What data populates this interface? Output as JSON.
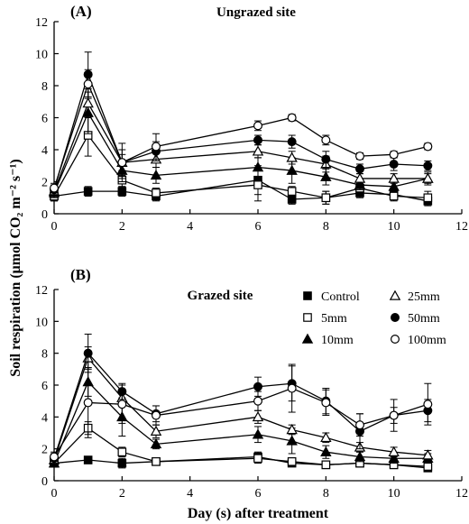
{
  "figure": {
    "ylabel": "Soil respiration (μmol CO₂ m⁻² s⁻¹)",
    "xlabel": "Day (s) after treatment"
  },
  "legend": [
    "Control",
    "5mm",
    "10mm",
    "25mm",
    "50mm",
    "100mm"
  ],
  "chart_data": [
    {
      "type": "line",
      "panel": "(A)",
      "title": "Ungrazed site",
      "xlim": [
        0,
        12
      ],
      "ylim": [
        0,
        12
      ],
      "xticks": [
        "0",
        "2",
        "4",
        "6",
        "8",
        "10",
        "12"
      ],
      "yticks": [
        "0",
        "2",
        "4",
        "6",
        "8",
        "10",
        "12"
      ],
      "x": [
        0,
        1,
        2,
        3,
        6,
        7,
        8,
        9,
        10,
        11
      ],
      "series": [
        {
          "name": "Control",
          "marker": "square-filled",
          "values": [
            1.1,
            1.4,
            1.4,
            1.1,
            2.1,
            0.9,
            1.0,
            1.3,
            1.2,
            0.8
          ],
          "errors": [
            0.3,
            0.3,
            0.3,
            0.3,
            0.9,
            0.3,
            0.4,
            0.3,
            0.3,
            0.3
          ]
        },
        {
          "name": "5mm",
          "marker": "square-open",
          "values": [
            1.1,
            4.9,
            2.1,
            1.3,
            1.8,
            1.4,
            1.0,
            1.6,
            1.1,
            1.0
          ],
          "errors": [
            0.3,
            1.3,
            0.4,
            0.3,
            1.0,
            0.3,
            0.4,
            0.3,
            0.3,
            0.4
          ]
        },
        {
          "name": "10mm",
          "marker": "triangle-filled",
          "values": [
            1.3,
            6.3,
            2.7,
            2.4,
            2.9,
            2.7,
            2.3,
            1.8,
            1.7,
            2.2
          ],
          "errors": [
            0.3,
            1.3,
            0.5,
            0.5,
            0.6,
            0.8,
            0.5,
            0.3,
            0.3,
            0.4
          ]
        },
        {
          "name": "25mm",
          "marker": "triangle-open",
          "values": [
            1.4,
            6.9,
            3.2,
            3.4,
            3.9,
            3.5,
            3.1,
            2.2,
            2.2,
            2.2
          ],
          "errors": [
            0.3,
            0.9,
            0.5,
            0.5,
            0.4,
            0.4,
            0.5,
            0.3,
            0.3,
            0.3
          ]
        },
        {
          "name": "50mm",
          "marker": "circle-filled",
          "values": [
            1.5,
            8.7,
            3.2,
            3.9,
            4.6,
            4.5,
            3.4,
            2.8,
            3.1,
            3.0
          ],
          "errors": [
            0.3,
            1.4,
            1.2,
            0.6,
            0.3,
            0.4,
            0.5,
            0.3,
            0.4,
            0.3
          ]
        },
        {
          "name": "100mm",
          "marker": "circle-open",
          "values": [
            1.6,
            8.1,
            3.2,
            4.2,
            5.5,
            6.0,
            4.6,
            3.6,
            3.7,
            4.2
          ],
          "errors": [
            0.3,
            0.9,
            0.8,
            0.8,
            0.3,
            0.2,
            0.3,
            0.2,
            0.2,
            0.2
          ]
        }
      ]
    },
    {
      "type": "line",
      "panel": "(B)",
      "title": "Grazed site",
      "xlim": [
        0,
        12
      ],
      "ylim": [
        0,
        12
      ],
      "xticks": [
        "0",
        "2",
        "4",
        "6",
        "8",
        "10",
        "12"
      ],
      "yticks": [
        "0",
        "2",
        "4",
        "6",
        "8",
        "10",
        "12"
      ],
      "x": [
        0,
        1,
        2,
        3,
        6,
        7,
        8,
        9,
        10,
        11
      ],
      "series": [
        {
          "name": "Control",
          "marker": "square-filled",
          "values": [
            1.1,
            1.3,
            1.1,
            1.2,
            1.5,
            1.1,
            1.0,
            1.1,
            1.0,
            0.8
          ],
          "errors": [
            0.2,
            0.2,
            0.3,
            0.2,
            0.3,
            0.2,
            0.2,
            0.2,
            0.2,
            0.2
          ]
        },
        {
          "name": "5mm",
          "marker": "square-open",
          "values": [
            1.1,
            3.3,
            1.8,
            1.2,
            1.4,
            1.2,
            1.0,
            1.1,
            1.0,
            0.9
          ],
          "errors": [
            0.2,
            0.4,
            0.3,
            0.2,
            0.3,
            0.2,
            0.2,
            0.2,
            0.2,
            0.2
          ]
        },
        {
          "name": "10mm",
          "marker": "triangle-filled",
          "values": [
            1.1,
            6.2,
            4.0,
            2.3,
            2.9,
            2.5,
            1.8,
            1.5,
            1.4,
            1.4
          ],
          "errors": [
            0.2,
            0.9,
            1.2,
            0.3,
            0.5,
            0.8,
            0.4,
            0.3,
            0.3,
            0.3
          ]
        },
        {
          "name": "25mm",
          "marker": "triangle-open",
          "values": [
            1.3,
            7.7,
            5.2,
            3.1,
            4.0,
            3.2,
            2.7,
            2.1,
            1.8,
            1.6
          ],
          "errors": [
            0.3,
            0.7,
            0.5,
            0.4,
            0.4,
            0.3,
            0.3,
            0.3,
            0.3,
            0.3
          ]
        },
        {
          "name": "50mm",
          "marker": "circle-filled",
          "values": [
            1.4,
            8.0,
            5.6,
            4.2,
            5.9,
            6.1,
            5.0,
            3.1,
            4.1,
            4.4
          ],
          "errors": [
            0.3,
            1.2,
            0.5,
            0.5,
            0.6,
            1.1,
            0.8,
            1.1,
            0.5,
            0.7
          ]
        },
        {
          "name": "100mm",
          "marker": "circle-open",
          "values": [
            1.5,
            4.9,
            4.8,
            4.1,
            5.0,
            5.8,
            4.9,
            3.5,
            4.1,
            4.8
          ],
          "errors": [
            0.3,
            2.2,
            1.2,
            0.6,
            0.6,
            1.5,
            0.8,
            0.7,
            1.0,
            1.3
          ]
        }
      ]
    }
  ]
}
